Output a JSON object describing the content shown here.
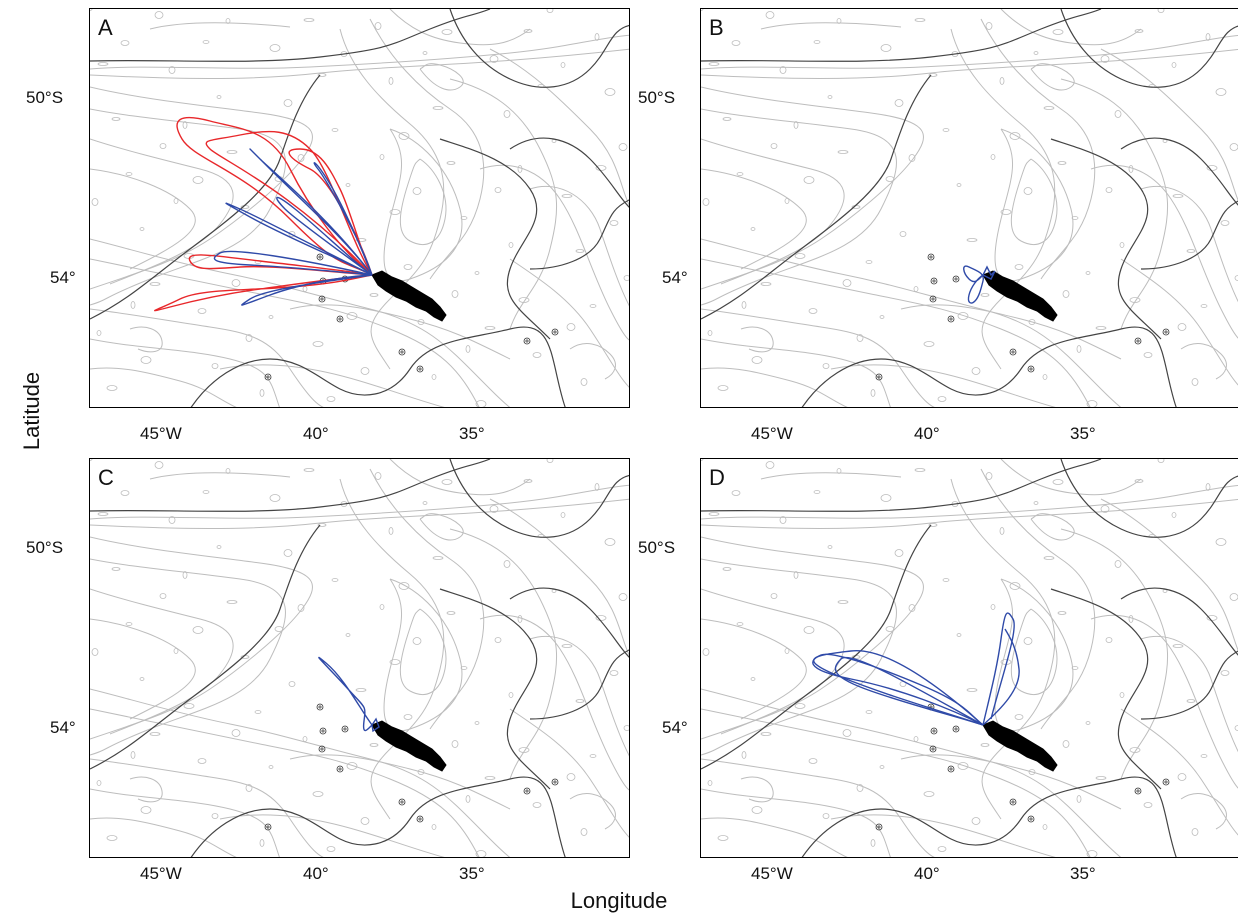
{
  "figure": {
    "x_axis_title": "Longitude",
    "y_axis_title": "Latitude",
    "x_ticks": [
      "45°W",
      "40°",
      "35°"
    ],
    "y_ticks": [
      "50°S",
      "54°"
    ]
  },
  "panels": [
    {
      "label": "A",
      "track_colors": [
        "#e8282b",
        "#2f4aa8"
      ]
    },
    {
      "label": "B",
      "track_colors": [
        "#2f4aa8"
      ]
    },
    {
      "label": "C",
      "track_colors": [
        "#2f4aa8"
      ]
    },
    {
      "label": "D",
      "track_colors": [
        "#2f4aa8"
      ]
    }
  ],
  "colors": {
    "bathymetry": "#bdbdbd",
    "major_contour": "#444444",
    "island": "#000000",
    "track_red": "#e8282b",
    "track_blue": "#2f4aa8"
  }
}
